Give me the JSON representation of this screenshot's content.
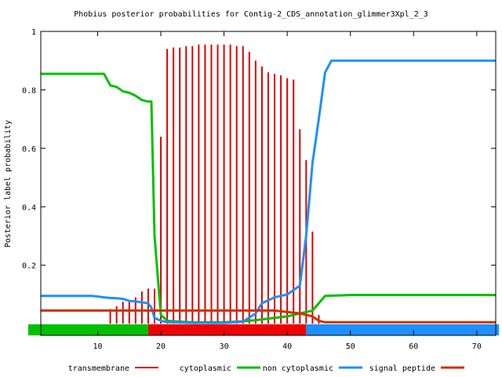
{
  "chart_data": {
    "type": "line",
    "title": "Phobius posterior probabilities for Contig-2_CDS_annotation_glimmer3Xpl_2_3",
    "xlabel": "",
    "ylabel": "Posterior label probability",
    "xlim": [
      1,
      73
    ],
    "ylim": [
      -0.04,
      1.0
    ],
    "x_ticks": [
      10,
      20,
      30,
      40,
      50,
      60,
      70
    ],
    "y_ticks": [
      0.2,
      0.4,
      0.6,
      0.8,
      1
    ],
    "y_tick_labels": [
      "0.2",
      "0.4",
      "0.6",
      "0.8",
      "1"
    ],
    "grid": false,
    "legend_position": "bottom",
    "legend": [
      {
        "name": "transmembrane",
        "color": "#dd0000"
      },
      {
        "name": "cytoplasmic",
        "color": "#00c000"
      },
      {
        "name": "non cytoplasmic",
        "color": "#1e8fff"
      },
      {
        "name": "signal peptide",
        "color": "#cc3300"
      }
    ],
    "series": [
      {
        "name": "transmembrane",
        "style": "impulses",
        "color": "#dd0000",
        "x": [
          12,
          13,
          14,
          15,
          16,
          17,
          18,
          19,
          20,
          21,
          22,
          23,
          24,
          25,
          26,
          27,
          28,
          29,
          30,
          31,
          32,
          33,
          34,
          35,
          36,
          37,
          38,
          39,
          40,
          41,
          42,
          43,
          44,
          45
        ],
        "values": [
          0.05,
          0.06,
          0.075,
          0.08,
          0.09,
          0.11,
          0.12,
          0.12,
          0.64,
          0.94,
          0.945,
          0.945,
          0.95,
          0.95,
          0.955,
          0.955,
          0.955,
          0.955,
          0.955,
          0.955,
          0.95,
          0.95,
          0.93,
          0.9,
          0.88,
          0.86,
          0.855,
          0.85,
          0.84,
          0.835,
          0.665,
          0.56,
          0.315,
          0.03
        ]
      },
      {
        "name": "cytoplasmic",
        "style": "line",
        "color": "#00c000",
        "x": [
          1,
          9,
          10,
          11,
          12,
          13,
          14,
          15,
          16,
          17,
          18,
          18.5,
          19,
          20,
          21,
          22,
          25,
          30,
          33,
          35,
          38,
          40,
          42,
          44,
          46,
          50,
          73
        ],
        "values": [
          0.855,
          0.855,
          0.855,
          0.855,
          0.815,
          0.81,
          0.795,
          0.79,
          0.78,
          0.765,
          0.76,
          0.76,
          0.3,
          0.03,
          0.01,
          0.008,
          0.005,
          0.005,
          0.008,
          0.012,
          0.02,
          0.025,
          0.035,
          0.045,
          0.095,
          0.098,
          0.098
        ]
      },
      {
        "name": "non cytoplasmic",
        "style": "line",
        "color": "#1e8fff",
        "x": [
          1,
          9,
          10,
          11,
          12,
          13,
          14,
          15,
          16,
          17,
          18,
          18.5,
          19,
          20,
          21,
          22,
          25,
          30,
          33,
          35,
          36,
          38,
          40,
          42,
          43,
          44,
          45,
          46,
          47,
          50,
          73
        ],
        "values": [
          0.095,
          0.095,
          0.093,
          0.09,
          0.088,
          0.087,
          0.085,
          0.078,
          0.076,
          0.073,
          0.07,
          0.055,
          0.02,
          0.01,
          0.005,
          0.005,
          0.003,
          0.003,
          0.007,
          0.035,
          0.07,
          0.09,
          0.1,
          0.13,
          0.3,
          0.55,
          0.7,
          0.86,
          0.9,
          0.9,
          0.9
        ]
      },
      {
        "name": "signal peptide",
        "style": "line",
        "color": "#cc3300",
        "x": [
          1,
          17,
          18,
          19,
          20,
          21,
          25,
          30,
          35,
          38,
          40,
          42,
          44,
          45,
          46,
          48,
          73
        ],
        "values": [
          0.045,
          0.045,
          0.045,
          0.045,
          0.045,
          0.045,
          0.045,
          0.045,
          0.045,
          0.045,
          0.04,
          0.035,
          0.025,
          0.01,
          0.005,
          0.005,
          0.005
        ]
      }
    ],
    "topology_bar": [
      {
        "label": "cytoplasmic",
        "from": 1,
        "to": 18
      },
      {
        "label": "transmembrane",
        "from": 18,
        "to": 43
      },
      {
        "label": "non cytoplasmic",
        "from": 43,
        "to": 73
      }
    ],
    "topology_colors": {
      "cytoplasmic": "#00c000",
      "transmembrane": "#ee0000",
      "non cytoplasmic": "#1e8fff"
    }
  }
}
